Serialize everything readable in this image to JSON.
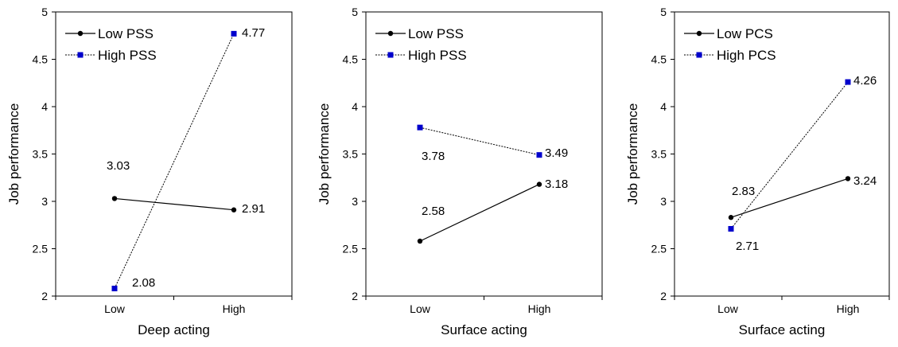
{
  "chart_data": [
    {
      "type": "line",
      "xlabel": "Deep acting",
      "ylabel": "Job performance",
      "categories": [
        "Low",
        "High"
      ],
      "ylim": [
        2,
        5
      ],
      "yticks": [
        "2",
        "2.5",
        "3",
        "3.5",
        "4",
        "4.5",
        "5"
      ],
      "legend_position": "top-left",
      "series": [
        {
          "name": "Low PSS",
          "values": [
            3.03,
            2.91
          ],
          "labels": [
            "3.03",
            "2.91"
          ],
          "style": "solid",
          "marker": "circle",
          "color": "#000000"
        },
        {
          "name": "High PSS",
          "values": [
            2.08,
            4.77
          ],
          "labels": [
            "2.08",
            "4.77"
          ],
          "style": "dotted",
          "marker": "square",
          "color": "#0000cc"
        }
      ]
    },
    {
      "type": "line",
      "xlabel": "Surface acting",
      "ylabel": "Job performance",
      "categories": [
        "Low",
        "High"
      ],
      "ylim": [
        2,
        5
      ],
      "yticks": [
        "2",
        "2.5",
        "3",
        "3.5",
        "4",
        "4.5",
        "5"
      ],
      "legend_position": "top-left",
      "series": [
        {
          "name": "Low PSS",
          "values": [
            2.58,
            3.18
          ],
          "labels": [
            "2.58",
            "3.18"
          ],
          "style": "solid",
          "marker": "circle",
          "color": "#000000"
        },
        {
          "name": "High PSS",
          "values": [
            3.78,
            3.49
          ],
          "labels": [
            "3.78",
            "3.49"
          ],
          "style": "dotted",
          "marker": "square",
          "color": "#0000cc"
        }
      ]
    },
    {
      "type": "line",
      "xlabel": "Surface acting",
      "ylabel": "Job performance",
      "categories": [
        "Low",
        "High"
      ],
      "ylim": [
        2,
        5
      ],
      "yticks": [
        "2",
        "2.5",
        "3",
        "3.5",
        "4",
        "4.5",
        "5"
      ],
      "legend_position": "top-left",
      "series": [
        {
          "name": "Low PCS",
          "values": [
            2.83,
            3.24
          ],
          "labels": [
            "2.83",
            "3.24"
          ],
          "style": "solid",
          "marker": "circle",
          "color": "#000000"
        },
        {
          "name": "High PCS",
          "values": [
            2.71,
            4.26
          ],
          "labels": [
            "2.71",
            "4.26"
          ],
          "style": "dotted",
          "marker": "square",
          "color": "#0000cc"
        }
      ]
    }
  ]
}
